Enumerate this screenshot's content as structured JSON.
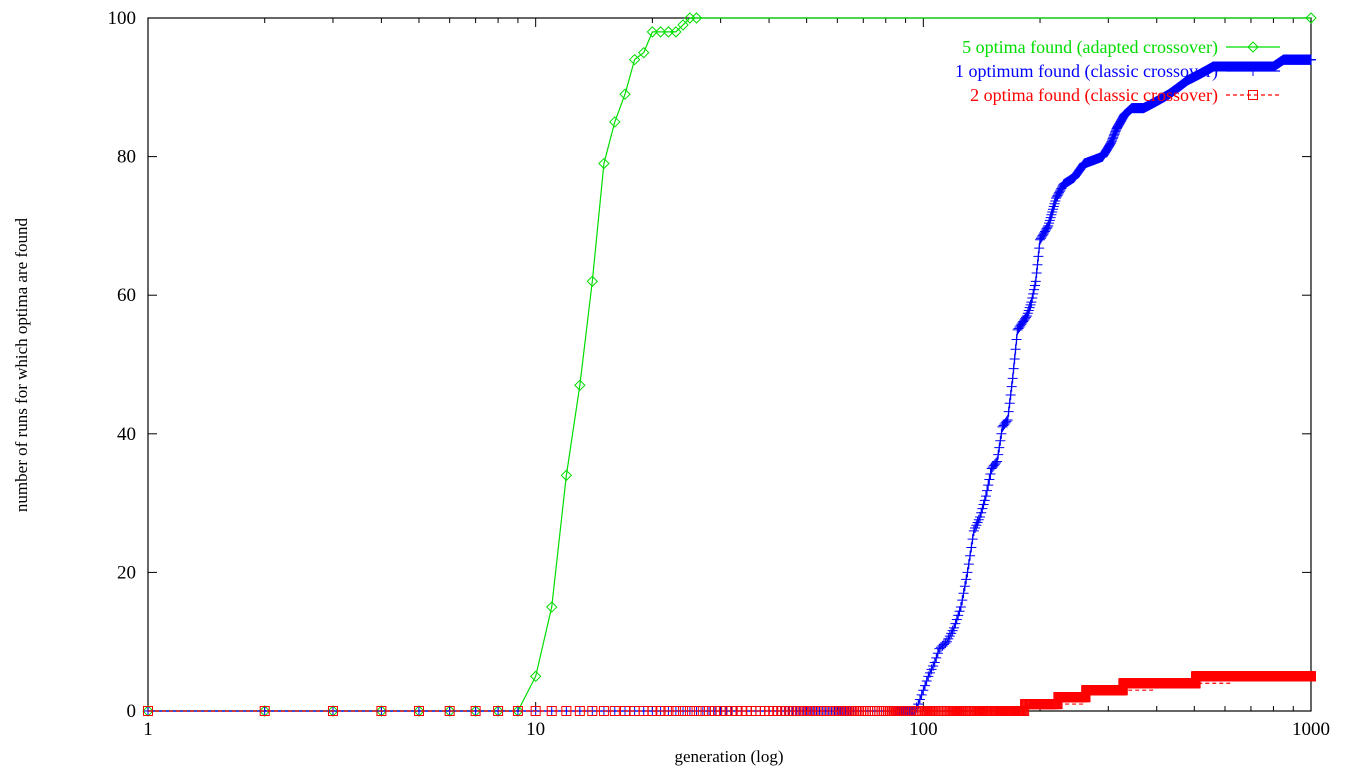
{
  "chart_data": {
    "type": "line",
    "title": "",
    "xlabel": "generation (log)",
    "ylabel": "number of runs for which optima are found",
    "xscale": "log",
    "xlim": [
      1,
      1000
    ],
    "ylim": [
      0,
      100
    ],
    "x_ticks": [
      {
        "value": 1,
        "label": "1"
      },
      {
        "value": 10,
        "label": "10"
      },
      {
        "value": 100,
        "label": "100"
      },
      {
        "value": 1000,
        "label": "1000"
      }
    ],
    "y_ticks": [
      {
        "value": 0,
        "label": "0"
      },
      {
        "value": 20,
        "label": "20"
      },
      {
        "value": 40,
        "label": "40"
      },
      {
        "value": 60,
        "label": "60"
      },
      {
        "value": 80,
        "label": "80"
      },
      {
        "value": 100,
        "label": "100"
      }
    ],
    "grid": false,
    "legend_position": "top-right",
    "series": [
      {
        "name": "5 optima found (adapted crossover)",
        "color": "#00dd00",
        "marker": "diamond",
        "line": "solid",
        "points": [
          [
            1,
            0
          ],
          [
            2,
            0
          ],
          [
            3,
            0
          ],
          [
            4,
            0
          ],
          [
            5,
            0
          ],
          [
            6,
            0
          ],
          [
            7,
            0
          ],
          [
            8,
            0
          ],
          [
            9,
            0
          ],
          [
            10,
            5
          ],
          [
            11,
            15
          ],
          [
            12,
            34
          ],
          [
            13,
            47
          ],
          [
            14,
            62
          ],
          [
            15,
            79
          ],
          [
            16,
            85
          ],
          [
            17,
            89
          ],
          [
            18,
            94
          ],
          [
            19,
            95
          ],
          [
            20,
            98
          ],
          [
            21,
            98
          ],
          [
            22,
            98
          ],
          [
            23,
            98
          ],
          [
            24,
            99
          ],
          [
            25,
            100
          ],
          [
            26,
            100
          ],
          [
            1000,
            100
          ]
        ]
      },
      {
        "name": "1 optimum found (classic crossover)",
        "color": "#0000ff",
        "marker": "plus",
        "line": "solid",
        "points": [
          [
            1,
            0
          ],
          [
            2,
            0
          ],
          [
            3,
            0
          ],
          [
            4,
            0
          ],
          [
            5,
            0
          ],
          [
            6,
            0
          ],
          [
            7,
            0
          ],
          [
            8,
            0
          ],
          [
            9,
            0
          ],
          [
            10,
            0
          ],
          [
            95,
            0
          ],
          [
            97,
            1
          ],
          [
            100,
            3
          ],
          [
            103,
            5
          ],
          [
            107,
            7
          ],
          [
            110,
            9
          ],
          [
            115,
            10
          ],
          [
            120,
            12
          ],
          [
            125,
            15
          ],
          [
            130,
            20
          ],
          [
            135,
            26
          ],
          [
            140,
            28
          ],
          [
            145,
            31
          ],
          [
            150,
            35
          ],
          [
            155,
            36
          ],
          [
            160,
            41
          ],
          [
            165,
            42
          ],
          [
            170,
            48
          ],
          [
            175,
            55
          ],
          [
            180,
            56
          ],
          [
            185,
            57
          ],
          [
            190,
            59
          ],
          [
            195,
            62
          ],
          [
            200,
            68
          ],
          [
            210,
            70
          ],
          [
            220,
            74
          ],
          [
            230,
            76
          ],
          [
            245,
            77
          ],
          [
            260,
            79
          ],
          [
            290,
            80
          ],
          [
            305,
            82
          ],
          [
            315,
            84
          ],
          [
            330,
            86
          ],
          [
            345,
            87
          ],
          [
            370,
            87
          ],
          [
            400,
            88
          ],
          [
            430,
            89
          ],
          [
            480,
            91
          ],
          [
            520,
            92
          ],
          [
            560,
            93
          ],
          [
            600,
            93
          ],
          [
            700,
            93
          ],
          [
            800,
            93
          ],
          [
            850,
            94
          ],
          [
            1000,
            94
          ]
        ]
      },
      {
        "name": "2 optima found (classic crossover)",
        "color": "#ff0000",
        "marker": "square",
        "line": "dashed",
        "points": [
          [
            1,
            0
          ],
          [
            2,
            0
          ],
          [
            3,
            0
          ],
          [
            4,
            0
          ],
          [
            5,
            0
          ],
          [
            6,
            0
          ],
          [
            7,
            0
          ],
          [
            8,
            0
          ],
          [
            9,
            0
          ],
          [
            10,
            0
          ],
          [
            180,
            0
          ],
          [
            185,
            1
          ],
          [
            260,
            2
          ],
          [
            265,
            3
          ],
          [
            390,
            4
          ],
          [
            620,
            5
          ],
          [
            1000,
            5
          ]
        ]
      }
    ]
  }
}
